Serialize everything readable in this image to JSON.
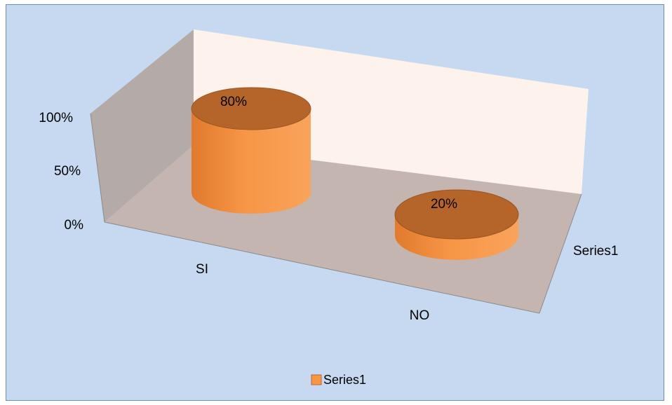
{
  "chart_data": {
    "type": "bar",
    "bar_shape": "cylinder",
    "projection": "3d",
    "categories": [
      "SI",
      "NO"
    ],
    "series": [
      {
        "name": "Series1",
        "values": [
          0.8,
          0.2
        ],
        "labels": [
          "80%",
          "20%"
        ],
        "color": "#f79646"
      }
    ],
    "y_ticks": [
      "0%",
      "50%",
      "100%"
    ],
    "ylim": [
      0,
      1
    ],
    "depth_axis_label": "Series1",
    "legend": {
      "position": "bottom",
      "entries": [
        "Series1"
      ]
    },
    "colors": {
      "chart_background": "#c6d9f1",
      "back_wall": "#fdf2ec",
      "side_wall": "#b4aba8",
      "floor": "#c4b5b0",
      "bar_side": "#f79646",
      "bar_top": "#b5652a"
    }
  }
}
